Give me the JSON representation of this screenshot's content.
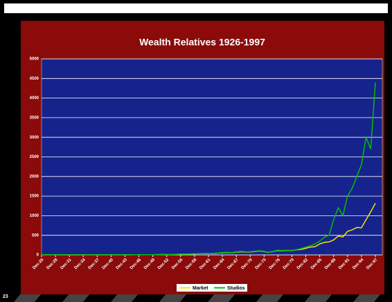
{
  "page_number": "23",
  "chart_data": {
    "type": "line",
    "title": "Wealth Relatives 1926-1997",
    "x": [
      1925,
      1926,
      1927,
      1928,
      1929,
      1930,
      1931,
      1932,
      1933,
      1934,
      1935,
      1936,
      1937,
      1938,
      1939,
      1940,
      1941,
      1942,
      1943,
      1944,
      1945,
      1946,
      1947,
      1948,
      1949,
      1950,
      1951,
      1952,
      1953,
      1954,
      1955,
      1956,
      1957,
      1958,
      1959,
      1960,
      1961,
      1962,
      1963,
      1964,
      1965,
      1966,
      1967,
      1968,
      1969,
      1970,
      1971,
      1972,
      1973,
      1974,
      1975,
      1976,
      1977,
      1978,
      1979,
      1980,
      1981,
      1982,
      1983,
      1984,
      1985,
      1986,
      1987,
      1988,
      1989,
      1990,
      1991,
      1992,
      1993,
      1994,
      1995,
      1996,
      1997
    ],
    "xlim": [
      1925,
      1998.5
    ],
    "xticks": [
      {
        "value": 1925,
        "label": "Dec-25"
      },
      {
        "value": 1928,
        "label": "Dec-28"
      },
      {
        "value": 1931,
        "label": "Dec-31"
      },
      {
        "value": 1934,
        "label": "Dec-34"
      },
      {
        "value": 1937,
        "label": "Dec-37"
      },
      {
        "value": 1940,
        "label": "Dec-40"
      },
      {
        "value": 1943,
        "label": "Dec-43"
      },
      {
        "value": 1946,
        "label": "Dec-46"
      },
      {
        "value": 1949,
        "label": "Dec-49"
      },
      {
        "value": 1952,
        "label": "Dec-52"
      },
      {
        "value": 1955,
        "label": "Dec-55"
      },
      {
        "value": 1958,
        "label": "Dec-58"
      },
      {
        "value": 1961,
        "label": "Dec-61"
      },
      {
        "value": 1964,
        "label": "Dec-64"
      },
      {
        "value": 1967,
        "label": "Dec-67"
      },
      {
        "value": 1970,
        "label": "Dec-70"
      },
      {
        "value": 1973,
        "label": "Dec-73"
      },
      {
        "value": 1976,
        "label": "Dec-76"
      },
      {
        "value": 1979,
        "label": "Dec-79"
      },
      {
        "value": 1982,
        "label": "Dec-82"
      },
      {
        "value": 1985,
        "label": "Dec-85"
      },
      {
        "value": 1988,
        "label": "Dec-88"
      },
      {
        "value": 1991,
        "label": "Dec-91"
      },
      {
        "value": 1994,
        "label": "Dec-94"
      },
      {
        "value": 1997,
        "label": "Dec-97"
      }
    ],
    "ylim": [
      0,
      5000
    ],
    "yticks": [
      0,
      500,
      1000,
      1500,
      2000,
      2500,
      3000,
      3500,
      4000,
      4500,
      5000
    ],
    "grid": true,
    "legend": "bottom",
    "series": [
      {
        "name": "Market",
        "color": "#f2e600",
        "values": [
          1,
          1.1,
          1.3,
          1.5,
          1.2,
          0.9,
          0.6,
          0.5,
          0.8,
          0.9,
          1.2,
          1.5,
          1.1,
          1.3,
          1.4,
          1.3,
          1.2,
          1.5,
          2,
          2.6,
          3.5,
          4,
          4,
          4.3,
          5,
          6.5,
          8,
          9,
          9.5,
          14,
          18,
          20,
          19,
          26,
          30,
          31,
          38,
          36,
          45,
          52,
          60,
          55,
          70,
          80,
          72,
          75,
          85,
          100,
          85,
          65,
          90,
          110,
          105,
          115,
          110,
          130,
          140,
          170,
          200,
          210,
          280,
          320,
          330,
          380,
          480,
          460,
          600,
          640,
          700,
          690,
          900,
          1100,
          1320
        ]
      },
      {
        "name": "Studios",
        "color": "#00c000",
        "values": [
          1,
          1.2,
          1.4,
          1.7,
          1.1,
          0.7,
          0.4,
          0.3,
          0.6,
          0.7,
          1,
          1.4,
          0.9,
          1.1,
          1.2,
          1.1,
          1,
          1.3,
          1.9,
          2.7,
          3.8,
          4.2,
          4,
          4.4,
          5.2,
          7,
          8.5,
          9.5,
          10,
          15,
          20,
          22,
          20,
          28,
          33,
          33,
          40,
          38,
          48,
          56,
          66,
          60,
          78,
          90,
          80,
          82,
          92,
          108,
          90,
          68,
          95,
          118,
          112,
          120,
          115,
          135,
          160,
          200,
          230,
          280,
          350,
          450,
          500,
          900,
          1200,
          1000,
          1500,
          1700,
          2000,
          2300,
          3000,
          2700,
          4400
        ]
      }
    ]
  }
}
